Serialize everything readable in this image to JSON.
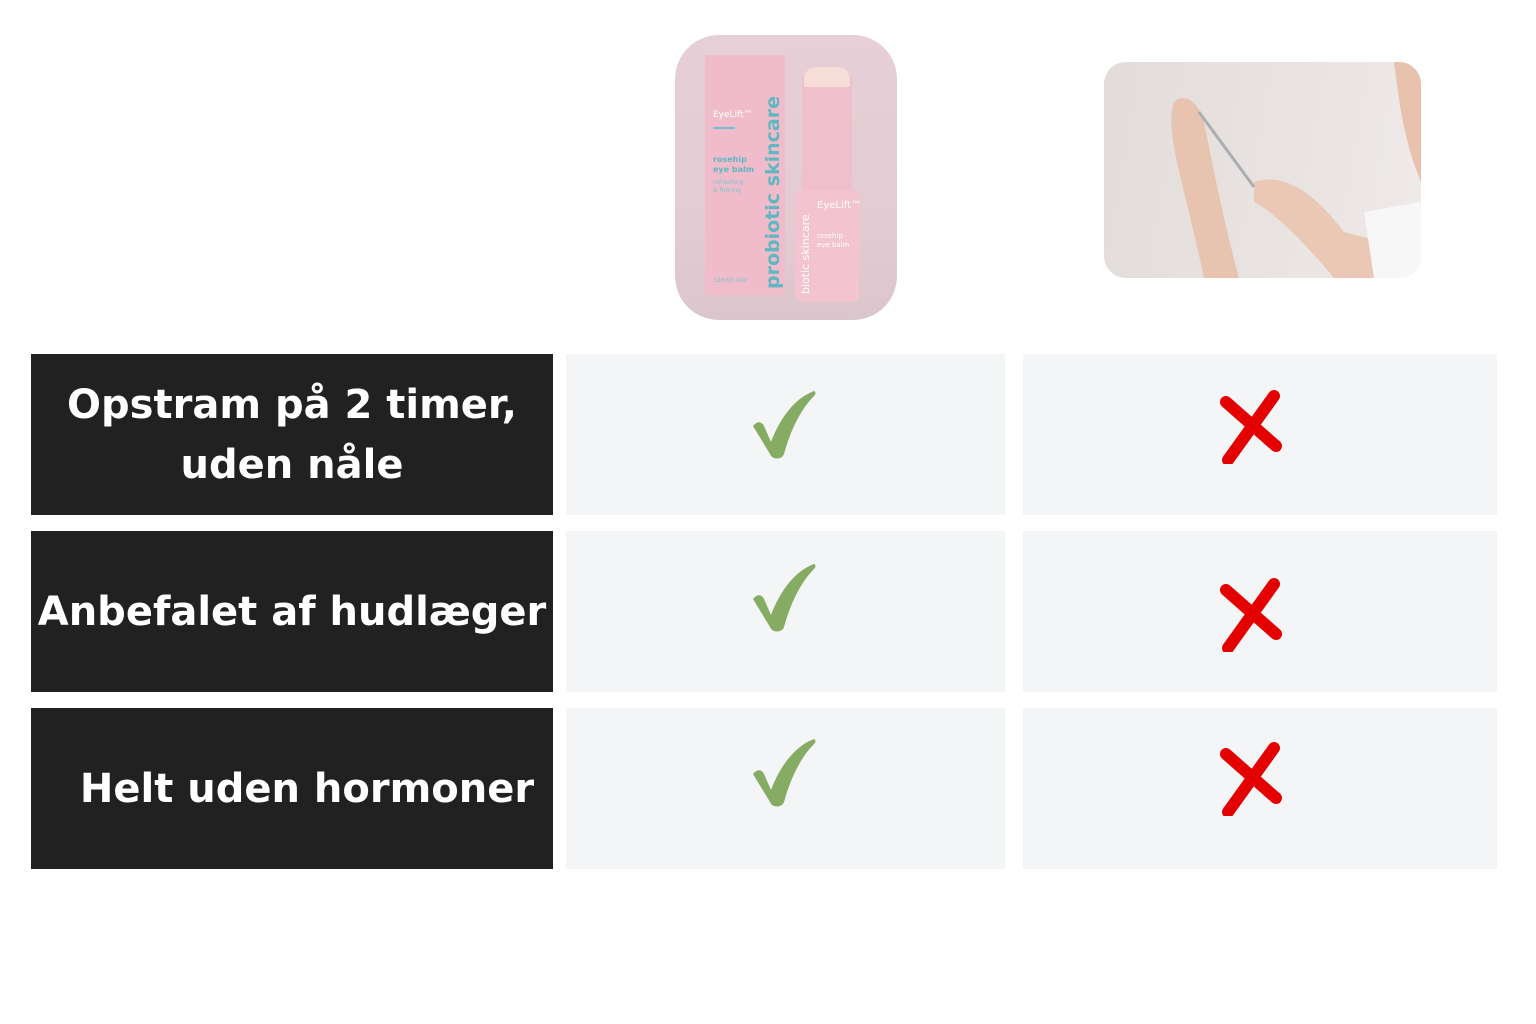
{
  "product_image": {
    "alt": "EyeLift rosehip eye balm product",
    "packaging_text": {
      "brand": "EyeLift™",
      "product": "rosehip eye balm",
      "tagline": "refreshing & firming",
      "box_vertical": "probiotic skincare",
      "stick_vertical": "biotic skincare",
      "size": "12ml/0.40z"
    }
  },
  "comparison_image": {
    "alt": "hands holding a needle"
  },
  "rows": [
    {
      "label_line1": "Opstram på 2 timer,",
      "label_line2": "uden nåle",
      "product": "check-icon",
      "alternative": "cross-icon"
    },
    {
      "label_line1": "Anbefalet af hudlæger",
      "label_line2": "",
      "product": "check-icon",
      "alternative": "cross-icon"
    },
    {
      "label_line1": "Helt uden hormoner",
      "label_line2": "",
      "product": "check-icon",
      "alternative": "cross-icon"
    }
  ],
  "colors": {
    "label_bg": "#212121",
    "cell_bg": "#f4f5f7",
    "check": "#86ab63",
    "cross": "#e50000"
  }
}
